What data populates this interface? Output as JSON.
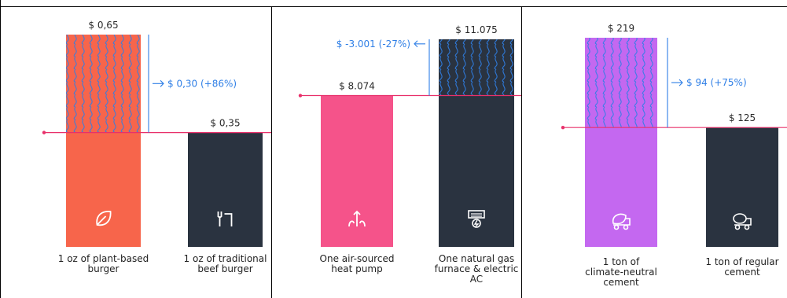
{
  "colors": {
    "ref_line": "#e8306a",
    "delta": "#2f7fe6",
    "dark_bar": "#2a3340",
    "wave": "#2f7fe6"
  },
  "chart_data": [
    {
      "type": "bar",
      "categories": [
        "1 oz of plant-based burger",
        "1 oz of traditional beef burger"
      ],
      "category_lines": [
        [
          "1 oz of plant-based",
          "burger"
        ],
        [
          "1 oz of traditional",
          "beef burger"
        ]
      ],
      "values": [
        0.65,
        0.35
      ],
      "value_labels": [
        "$ 0,65",
        "$ 0,35"
      ],
      "bar_colors": [
        "#f7654b",
        "#2a3340"
      ],
      "icons": [
        "leaf-icon",
        "fork-icon"
      ],
      "delta_label": "$ 0,30 (+86%)",
      "delta_direction": "right",
      "ylim": [
        0,
        0.65
      ]
    },
    {
      "type": "bar",
      "categories": [
        "One air-sourced heat pump",
        "One natural gas furnace & electric AC"
      ],
      "category_lines": [
        [
          "One air-sourced",
          "heat pump"
        ],
        [
          "One natural gas",
          "furnace & electric",
          "AC"
        ]
      ],
      "values": [
        8074,
        11075
      ],
      "value_labels": [
        "$ 8.074",
        "$ 11.075"
      ],
      "bar_colors": [
        "#f5538a",
        "#2a3340"
      ],
      "icons": [
        "heat-pump-icon",
        "furnace-ac-icon"
      ],
      "delta_label": "$ -3.001 (-27%)",
      "delta_direction": "left",
      "ylim": [
        0,
        11075
      ]
    },
    {
      "type": "bar",
      "categories": [
        "1 ton of climate-neutral cement",
        "1 ton of regular cement"
      ],
      "category_lines": [
        [
          "1 ton of",
          "climate-neutral",
          "cement"
        ],
        [
          "1 ton of regular",
          "cement"
        ]
      ],
      "values": [
        219,
        125
      ],
      "value_labels": [
        "$ 219",
        "$ 125"
      ],
      "bar_colors": [
        "#c468f0",
        "#2a3340"
      ],
      "icons": [
        "eco-cement-truck-icon",
        "cement-truck-icon"
      ],
      "delta_label": "$ 94 (+75%)",
      "delta_direction": "right",
      "ylim": [
        0,
        219
      ]
    }
  ]
}
